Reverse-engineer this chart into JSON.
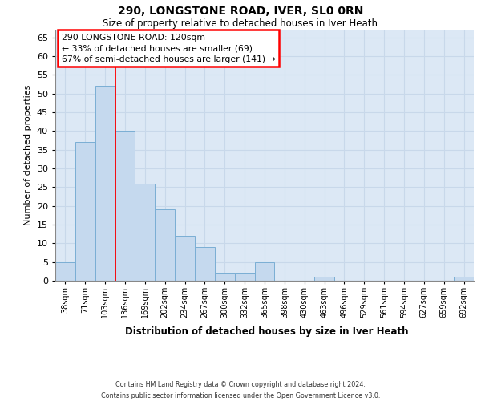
{
  "title": "290, LONGSTONE ROAD, IVER, SL0 0RN",
  "subtitle": "Size of property relative to detached houses in Iver Heath",
  "xlabel": "Distribution of detached houses by size in Iver Heath",
  "ylabel": "Number of detached properties",
  "categories": [
    "38sqm",
    "71sqm",
    "103sqm",
    "136sqm",
    "169sqm",
    "202sqm",
    "234sqm",
    "267sqm",
    "300sqm",
    "332sqm",
    "365sqm",
    "398sqm",
    "430sqm",
    "463sqm",
    "496sqm",
    "529sqm",
    "561sqm",
    "594sqm",
    "627sqm",
    "659sqm",
    "692sqm"
  ],
  "values": [
    5,
    37,
    52,
    40,
    26,
    19,
    12,
    9,
    2,
    2,
    5,
    0,
    0,
    1,
    0,
    0,
    0,
    0,
    0,
    0,
    1
  ],
  "bar_color": "#c5d9ee",
  "bar_edge_color": "#7aaed4",
  "highlight_color": "#9bbfd9",
  "highlight_edge_color": "#5a90ba",
  "grid_color": "#c8d8ea",
  "background_color": "#dce8f5",
  "annotation_box_line1": "290 LONGSTONE ROAD: 120sqm",
  "annotation_box_line2": "← 33% of detached houses are smaller (69)",
  "annotation_box_line3": "67% of semi-detached houses are larger (141) →",
  "annotation_box_color": "white",
  "annotation_box_edge_color": "red",
  "red_line_bar_index": 3,
  "ylim": [
    0,
    67
  ],
  "yticks": [
    0,
    5,
    10,
    15,
    20,
    25,
    30,
    35,
    40,
    45,
    50,
    55,
    60,
    65
  ],
  "footer_line1": "Contains HM Land Registry data © Crown copyright and database right 2024.",
  "footer_line2": "Contains public sector information licensed under the Open Government Licence v3.0."
}
